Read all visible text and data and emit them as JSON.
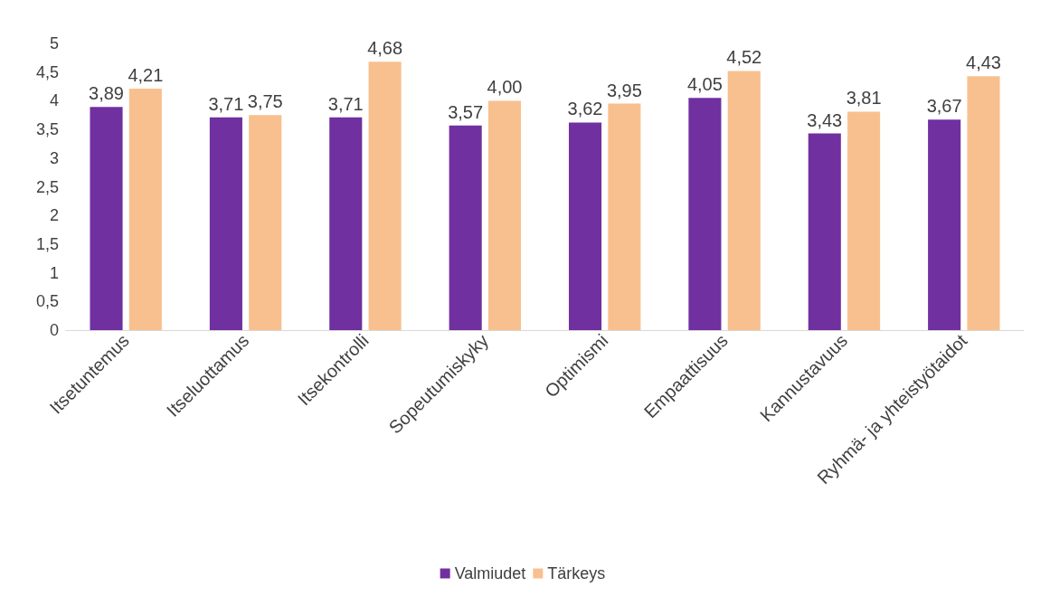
{
  "chart_data": {
    "type": "bar",
    "categories": [
      "Itsetuntemus",
      "Itseluottamus",
      "Itsekontrolli",
      "Sopeutumiskyky",
      "Optimismi",
      "Empaattisuus",
      "Kannustavuus",
      "Ryhmä- ja yhteistyötaidot"
    ],
    "series": [
      {
        "name": "Valmiudet",
        "color": "#7030a0",
        "values": [
          3.89,
          3.71,
          3.71,
          3.57,
          3.62,
          4.05,
          3.43,
          3.67
        ],
        "value_labels": [
          "3,89",
          "3,71",
          "3,71",
          "3,57",
          "3,62",
          "4,05",
          "3,43",
          "3,67"
        ]
      },
      {
        "name": "Tärkeys",
        "color": "#f8c08f",
        "values": [
          4.21,
          3.75,
          4.68,
          4.0,
          3.95,
          4.52,
          3.81,
          4.43
        ],
        "value_labels": [
          "4,21",
          "3,75",
          "4,68",
          "4,00",
          "3,95",
          "4,52",
          "3,81",
          "4,43"
        ]
      }
    ],
    "ylim": [
      0,
      5
    ],
    "yticks": [
      0,
      {
        "value": 0.5,
        "label": "0,5"
      },
      1,
      {
        "value": 1.5,
        "label": "1,5"
      },
      2,
      {
        "value": 2.5,
        "label": "2,5"
      },
      3,
      {
        "value": 3.5,
        "label": "3,5"
      },
      4,
      {
        "value": 4.5,
        "label": "4,5"
      },
      5
    ],
    "grid": false,
    "legend": "bottom"
  }
}
